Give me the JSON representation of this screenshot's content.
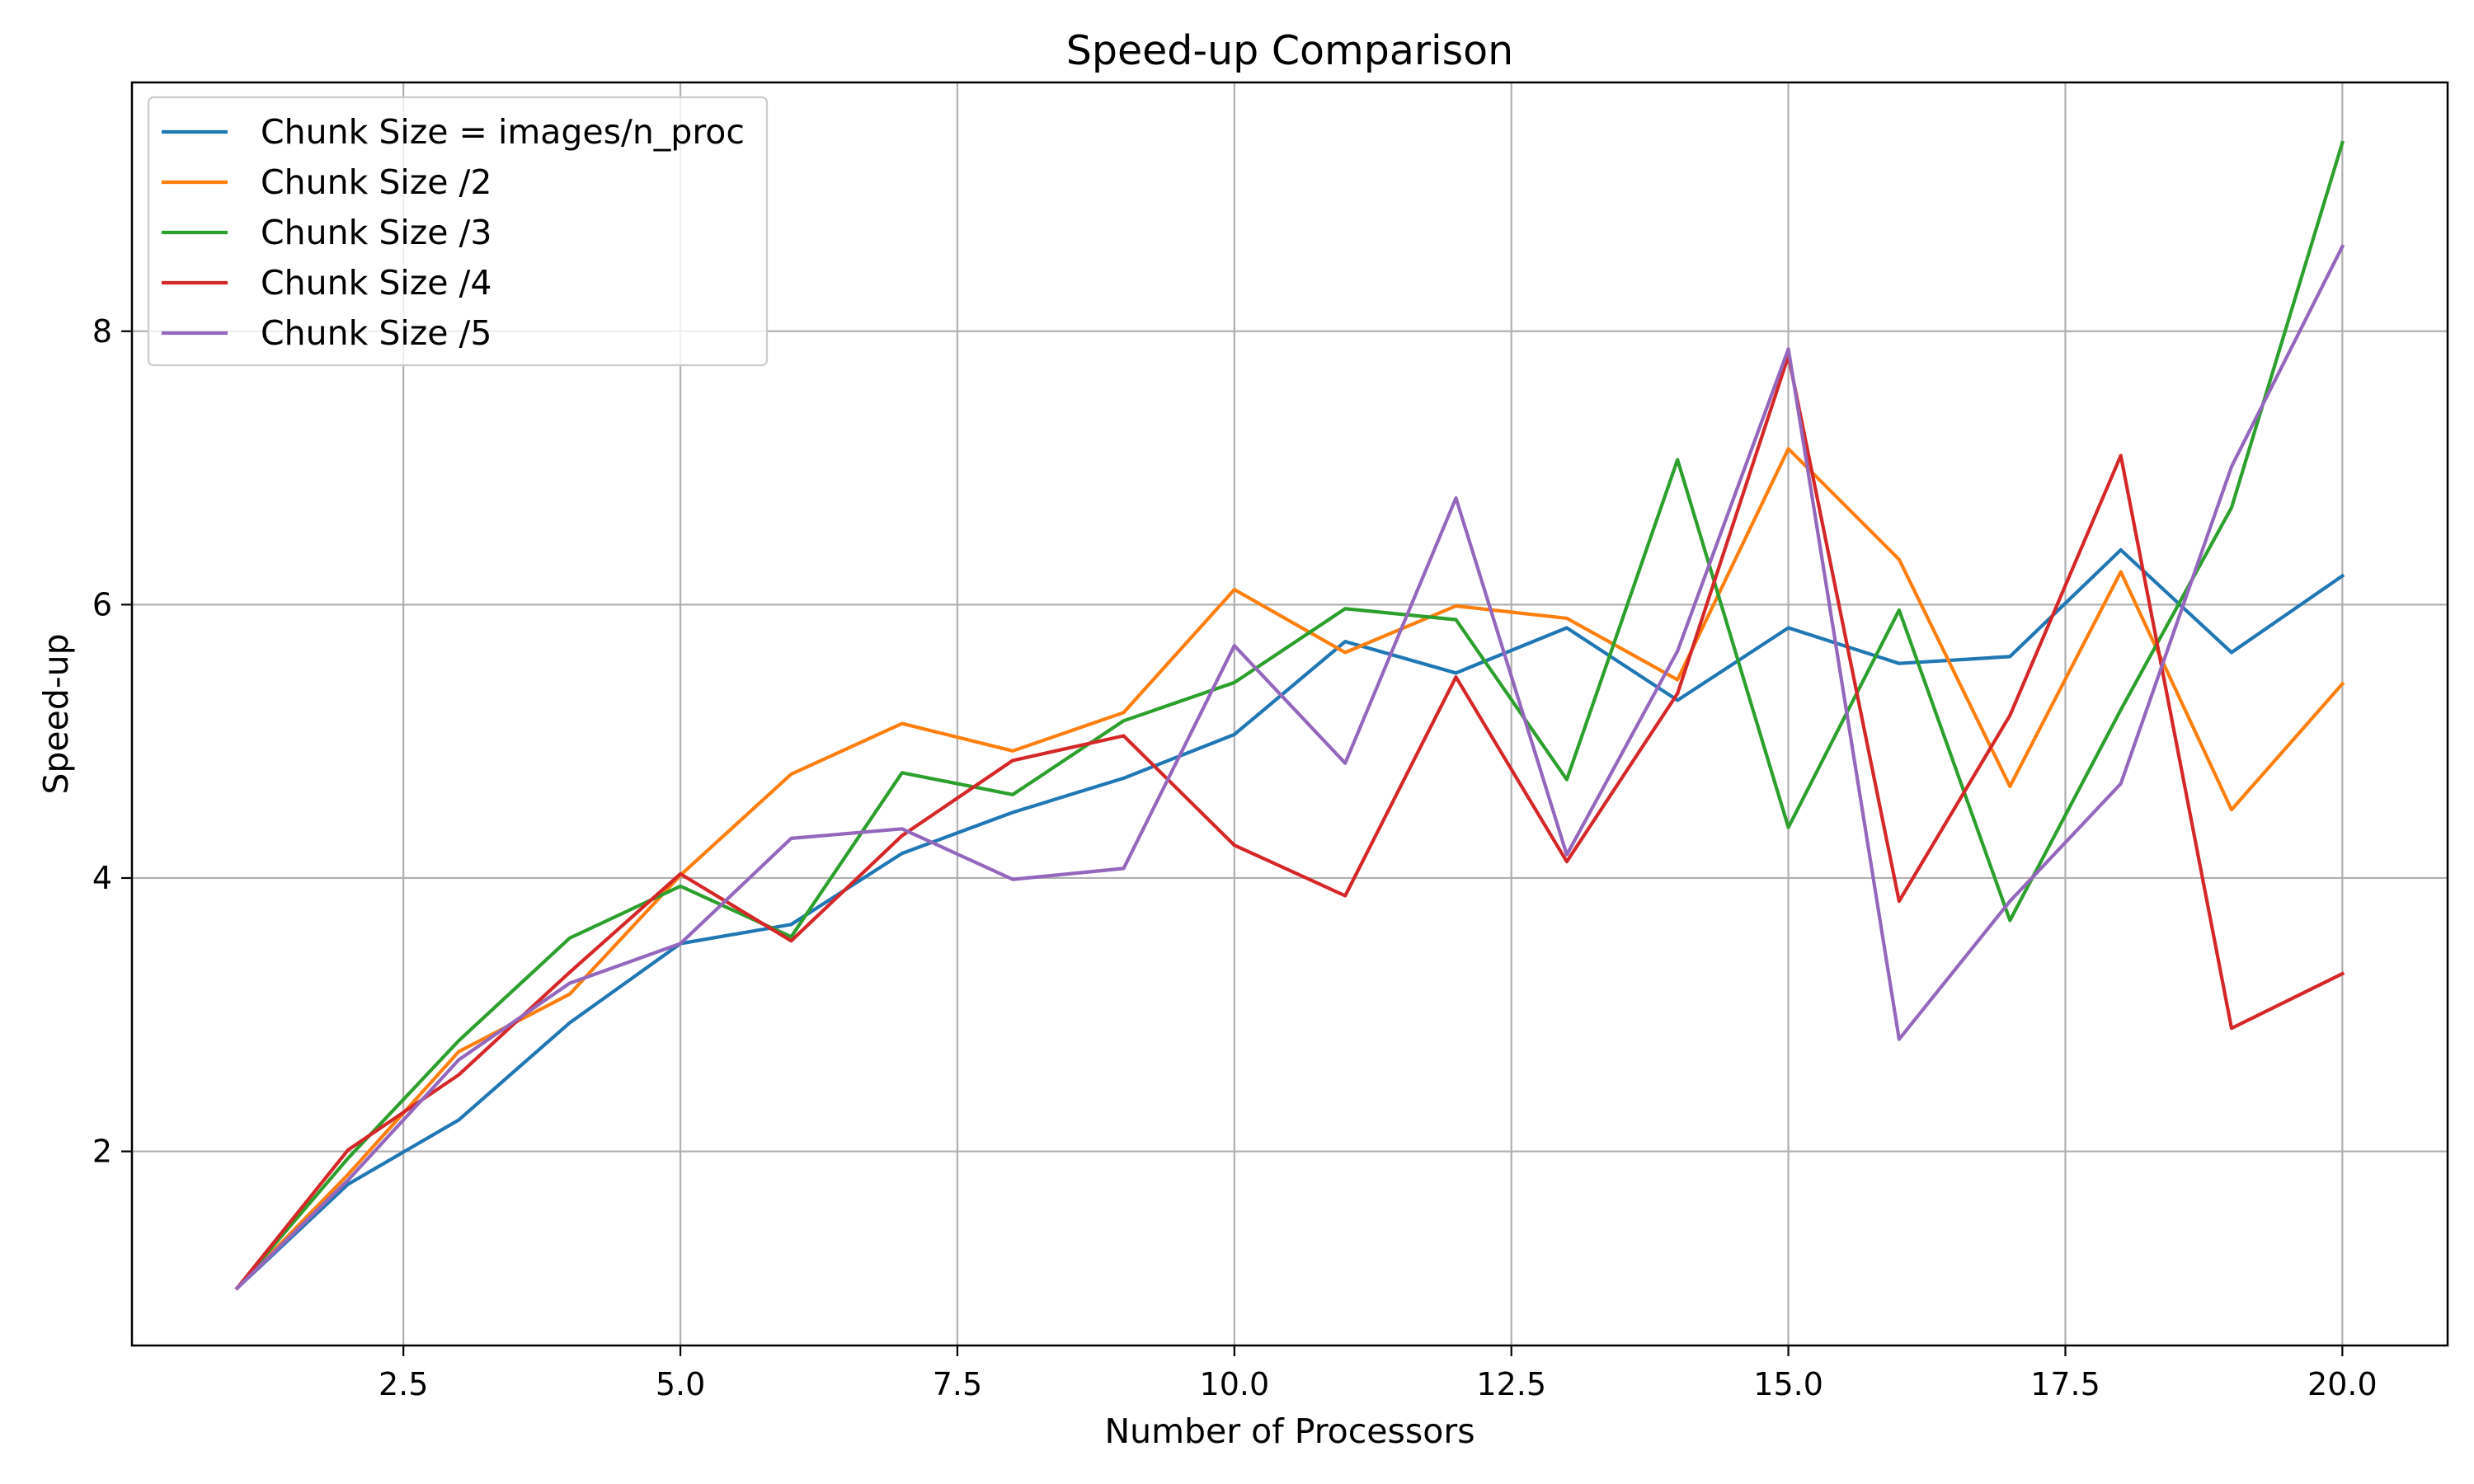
{
  "chart_data": {
    "type": "line",
    "title": "Speed-up Comparison",
    "xlabel": "Number of Processors",
    "ylabel": "Speed-up",
    "xlim": [
      0.05,
      20.95
    ],
    "ylim": [
      0.58,
      9.82
    ],
    "xticks": [
      2.5,
      5.0,
      7.5,
      10.0,
      12.5,
      15.0,
      17.5,
      20.0
    ],
    "xtick_labels": [
      "2.5",
      "5.0",
      "7.5",
      "10.0",
      "12.5",
      "15.0",
      "17.5",
      "20.0"
    ],
    "yticks": [
      2,
      4,
      6,
      8
    ],
    "ytick_labels": [
      "2",
      "4",
      "6",
      "8"
    ],
    "grid": true,
    "legend_position": "top-left",
    "x": [
      1,
      2,
      3,
      4,
      5,
      6,
      7,
      8,
      9,
      10,
      11,
      12,
      13,
      14,
      15,
      16,
      17,
      18,
      19,
      20
    ],
    "series": [
      {
        "name": "Chunk Size = images/n_proc",
        "color": "#1f77b4",
        "values": [
          1.0,
          1.76,
          2.23,
          2.94,
          3.52,
          3.66,
          4.18,
          4.48,
          4.73,
          5.05,
          5.73,
          5.5,
          5.83,
          5.3,
          5.83,
          5.57,
          5.62,
          6.4,
          5.65,
          6.21
        ]
      },
      {
        "name": "Chunk Size /2",
        "color": "#ff7f0e",
        "values": [
          1.0,
          1.83,
          2.73,
          3.15,
          4.02,
          4.76,
          5.13,
          4.93,
          5.21,
          6.11,
          5.65,
          5.99,
          5.9,
          5.45,
          7.14,
          6.33,
          4.67,
          6.24,
          4.5,
          5.42
        ]
      },
      {
        "name": "Chunk Size /3",
        "color": "#2ca02c",
        "values": [
          1.0,
          1.95,
          2.81,
          3.56,
          3.94,
          3.57,
          4.77,
          4.61,
          5.15,
          5.43,
          5.97,
          5.89,
          4.72,
          7.06,
          4.37,
          5.96,
          3.69,
          5.23,
          6.71,
          9.38
        ]
      },
      {
        "name": "Chunk Size /4",
        "color": "#d62728",
        "values": [
          1.0,
          2.01,
          2.56,
          3.31,
          4.03,
          3.54,
          4.31,
          4.86,
          5.04,
          4.24,
          3.87,
          5.47,
          4.12,
          5.35,
          7.82,
          3.83,
          5.19,
          7.09,
          2.9,
          3.3
        ]
      },
      {
        "name": "Chunk Size /5",
        "color": "#9467bd",
        "values": [
          1.0,
          1.79,
          2.67,
          3.23,
          3.52,
          4.29,
          4.36,
          3.99,
          4.07,
          5.7,
          4.84,
          6.78,
          4.17,
          5.66,
          7.87,
          2.82,
          3.83,
          4.69,
          7.01,
          8.62
        ]
      }
    ]
  }
}
